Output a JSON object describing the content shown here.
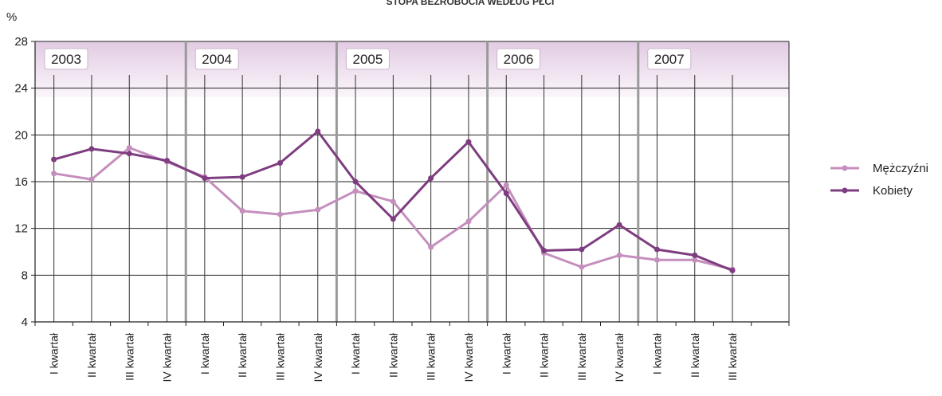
{
  "chart_data": {
    "type": "line",
    "title": "STOPA BEZROBOCIA WEDŁUG PŁCI",
    "ylabel": "%",
    "ylim": [
      4,
      28
    ],
    "yticks": [
      "4",
      "8",
      "12",
      "16",
      "20",
      "24",
      "28"
    ],
    "grid": true,
    "legend": "right",
    "years": [
      "2003",
      "2004",
      "2005",
      "2006",
      "2007"
    ],
    "categories": [
      "I kwartał",
      "II kwartał",
      "III kwartał",
      "IV kwartał",
      "I kwartał",
      "II kwartał",
      "III kwartał",
      "IV kwartał",
      "I kwartał",
      "II kwartał",
      "III kwartał",
      "IV kwartał",
      "I kwartał",
      "II kwartał",
      "III kwartał",
      "IV kwartał",
      "I kwartał",
      "II kwartał",
      "III kwartał"
    ],
    "series": [
      {
        "name": "Mężczyźni",
        "color": "#c58fbd",
        "values": [
          16.7,
          16.2,
          18.9,
          17.7,
          16.4,
          13.5,
          13.2,
          13.6,
          15.2,
          14.3,
          10.4,
          12.6,
          15.7,
          9.9,
          8.7,
          9.7,
          9.3,
          9.3,
          8.5
        ]
      },
      {
        "name": "Kobiety",
        "color": "#7e3d80",
        "values": [
          17.9,
          18.8,
          18.4,
          17.8,
          16.3,
          16.4,
          17.6,
          20.3,
          16.0,
          12.8,
          16.3,
          19.4,
          15.0,
          10.1,
          10.2,
          12.3,
          10.2,
          9.7,
          8.4
        ]
      }
    ]
  }
}
